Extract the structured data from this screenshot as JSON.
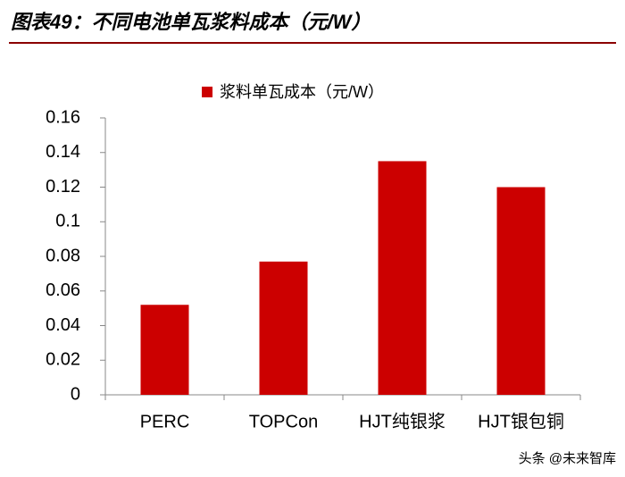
{
  "chart_data": {
    "type": "bar",
    "title": "图表49：不同电池单瓦浆料成本（元/W）",
    "categories": [
      "PERC",
      "TOPCon",
      "HJT纯银浆",
      "HJT银包铜"
    ],
    "series": [
      {
        "name": "浆料单瓦成本（元/W）",
        "color": "#cc0000",
        "values": [
          0.052,
          0.077,
          0.135,
          0.12
        ]
      }
    ],
    "ylim": [
      0,
      0.16
    ],
    "yticks": [
      0,
      0.02,
      0.04,
      0.06,
      0.08,
      0.1,
      0.12,
      0.14,
      0.16
    ],
    "grid": false,
    "legend": "top",
    "watermark": "头条 @未来智库"
  }
}
